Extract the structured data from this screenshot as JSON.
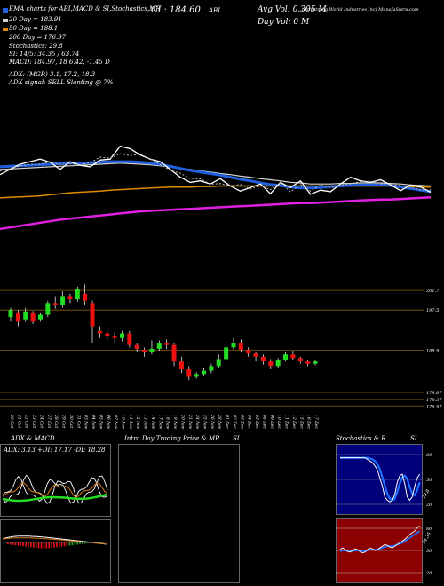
{
  "header": {
    "topline_left": "MunafaSutra.com",
    "symbol_title": "EMA charts for ABI,MACD & SI,Stochastics,MR",
    "cl_text": "CL: 184.60",
    "symbol_text": "ABI",
    "avg_vol": "Avg Vol: 0.305 M",
    "day_vol": "Day Vol: 0   M",
    "company": "(Armstrong World Industries Inc) MunafaSutra.com",
    "ma20": "20  Day  = 183.91",
    "ma50": "50  Day  = 188.1",
    "ma200": "200  Day  = 176.97",
    "stochastics": "Stochastics: 29.8",
    "si": "SI: 14/5: 34.35 / 63.74",
    "macd": "MACD: 184.97, 18          6.42, -1.45 D",
    "adx_line": "ADX:                              (MGR) 3.1,  17.2,  18.3",
    "adx_signal": "ADX  signal: SELL  Slanting @ 7%"
  },
  "colors": {
    "background": "#000000",
    "ema20": "#1f5fe0",
    "ema50": "#d4d4d4",
    "ema200_orange": "#e08a00",
    "ema_magenta": "#e020e0",
    "price": "#ffffff",
    "candle_up": "#22dd22",
    "candle_down": "#ee1111"
  },
  "chart_data": [
    {
      "type": "line",
      "title": "EMA lines",
      "note_series": [
        "price",
        "ema20",
        "ema50",
        "ema200",
        "long_ema"
      ],
      "x_count": 44,
      "series": [
        {
          "name": "",
          "values": [
            188,
            189,
            190,
            190.5,
            191,
            190.4,
            189,
            190.5,
            189.8,
            189.5,
            190.8,
            191,
            193.5,
            193,
            191.8,
            191,
            190.5,
            189,
            187.5,
            186.5,
            186.8,
            186.2,
            187.2,
            185.8,
            184.8,
            185.5,
            186.2,
            184.3,
            186.5,
            185.5,
            186.8,
            184.2,
            185,
            184.7,
            186.2,
            187.5,
            186.8,
            186.5,
            187,
            186,
            184.9,
            186,
            185.6,
            184.6
          ]
        },
        {
          "name": "",
          "values": [
            189.5,
            189.6,
            189.7,
            189.8,
            189.9,
            190,
            190.1,
            190.2,
            190.2,
            190.3,
            190.4,
            190.5,
            190.5,
            190.5,
            190.4,
            190.2,
            190,
            189.6,
            189.2,
            188.8,
            188.5,
            188.2,
            187.9,
            187.5,
            187.1,
            186.8,
            186.4,
            186.1,
            185.9,
            185.6,
            185.4,
            185.4,
            185.5,
            185.7,
            185.8,
            185.9,
            186,
            186,
            186,
            185.9,
            185.6,
            185.3,
            185,
            184.7
          ]
        },
        {
          "name": "",
          "values": [
            189,
            189.1,
            189.2,
            189.3,
            189.4,
            189.5,
            189.6,
            189.7,
            189.8,
            189.9,
            190,
            190.1,
            190.2,
            190.1,
            190,
            189.9,
            189.7,
            189.5,
            189.2,
            189,
            188.7,
            188.5,
            188.2,
            188,
            187.7,
            187.5,
            187.2,
            187,
            186.8,
            186.5,
            186.4,
            186.2,
            186.2,
            186.2,
            186.3,
            186.3,
            186.4,
            186.4,
            186.4,
            186.3,
            186.2,
            186,
            185.9,
            185.8
          ]
        },
        {
          "name": "",
          "values": [
            183.5,
            183.6,
            183.7,
            183.8,
            183.9,
            184.1,
            184.3,
            184.5,
            184.6,
            184.7,
            184.8,
            185,
            185.1,
            185.2,
            185.3,
            185.4,
            185.5,
            185.6,
            185.6,
            185.6,
            185.7,
            185.7,
            185.8,
            185.8,
            185.8,
            185.8,
            185.8,
            185.8,
            185.8,
            185.8,
            185.8,
            185.8,
            185.8,
            185.8,
            185.8,
            185.8,
            185.8,
            185.8,
            185.8,
            185.8,
            185.8,
            185.7,
            185.6,
            185.6
          ]
        },
        {
          "name": "",
          "values": [
            177.5,
            177.8,
            178.1,
            178.4,
            178.7,
            179,
            179.3,
            179.5,
            179.7,
            179.9,
            180.1,
            180.3,
            180.5,
            180.7,
            180.9,
            181,
            181.1,
            181.2,
            181.3,
            181.4,
            181.5,
            181.6,
            181.7,
            181.8,
            181.9,
            182,
            182.1,
            182.2,
            182.3,
            182.4,
            182.5,
            182.5,
            182.6,
            182.7,
            182.8,
            182.9,
            183,
            183.1,
            183.2,
            183.2,
            183.3,
            183.4,
            183.5,
            183.6
          ]
        }
      ]
    },
    {
      "type": "candlestick",
      "title": "",
      "y_tick_labels": [
        "201.7",
        "197.5",
        "188.9",
        "179.87",
        "178.37",
        "176.97"
      ],
      "x_labels": [
        "20 Oct",
        "21 Oct",
        "22 Oct",
        "23 Oct",
        "24 Oct",
        "27 Oct",
        "28 Oct",
        "29 Oct",
        "30 Oct",
        "31 Oct",
        "03 Nov",
        "04 Nov",
        "05 Nov",
        "06 Nov",
        "07 Nov",
        "10 Nov",
        "11 Nov",
        "12 Nov",
        "13 Nov",
        "14 Nov",
        "17 Nov",
        "18 Nov",
        "19 Nov",
        "20 Nov",
        "21 Nov",
        "24 Nov",
        "25 Nov",
        "26 Nov",
        "28 Nov",
        "01 Dec",
        "02 Dec",
        "03 Dec",
        "04 Dec",
        "05 Dec",
        "08 Dec",
        "09 Dec",
        "10 Dec",
        "11 Dec",
        "12 Dec",
        "15 Dec",
        "16 Dec",
        "17 Dec"
      ],
      "candles": [
        [
          196,
          197.5,
          195,
          198
        ],
        [
          197,
          195,
          194,
          197.5
        ],
        [
          195.5,
          197.2,
          195,
          198
        ],
        [
          197,
          195,
          194.5,
          197.3
        ],
        [
          195.5,
          196.5,
          195,
          197
        ],
        [
          196.5,
          199,
          196,
          199.5
        ],
        [
          199,
          198.5,
          197.8,
          200.5
        ],
        [
          198.5,
          200.5,
          198,
          201.5
        ],
        [
          200.5,
          199.8,
          199,
          201
        ],
        [
          199.8,
          202,
          199.3,
          202.5
        ],
        [
          201,
          199.5,
          198.5,
          203
        ],
        [
          199,
          194,
          190.5,
          199.5
        ],
        [
          193,
          192.5,
          191.5,
          194
        ],
        [
          192.5,
          192,
          191,
          193.5
        ],
        [
          192,
          191.5,
          190.5,
          192.8
        ],
        [
          191.5,
          192.5,
          190.8,
          193
        ],
        [
          192.5,
          190,
          189.5,
          193
        ],
        [
          190,
          189.2,
          188.5,
          190.5
        ],
        [
          189,
          188.5,
          187.5,
          189.5
        ],
        [
          188.5,
          189.2,
          188,
          191
        ],
        [
          189.2,
          190.5,
          188.8,
          191
        ],
        [
          190.5,
          190,
          189.2,
          191.2
        ],
        [
          190,
          186.5,
          185.5,
          190.5
        ],
        [
          186.5,
          184.8,
          184,
          187.5
        ],
        [
          184.8,
          183.2,
          182.5,
          185.5
        ],
        [
          183.2,
          183.8,
          182.8,
          184.2
        ],
        [
          183.8,
          184.5,
          183.5,
          185
        ],
        [
          184.5,
          185.5,
          184,
          186
        ],
        [
          185.5,
          187,
          185,
          188
        ],
        [
          187,
          189.5,
          186.5,
          190
        ],
        [
          189.5,
          190.5,
          189,
          191.5
        ],
        [
          190.5,
          189,
          188.5,
          191.2
        ],
        [
          189,
          188.2,
          187.5,
          189.5
        ],
        [
          188.2,
          187.5,
          186.5,
          188.5
        ],
        [
          187.5,
          186.5,
          185.8,
          188
        ],
        [
          186.5,
          185.5,
          184.8,
          187
        ],
        [
          185.5,
          186.8,
          185,
          187.2
        ],
        [
          186.8,
          188,
          186.5,
          188.5
        ],
        [
          188,
          187.2,
          186.8,
          188.8
        ],
        [
          187.2,
          186.5,
          186,
          187.5
        ],
        [
          186.5,
          186,
          185.5,
          186.8
        ],
        [
          186,
          186.5,
          185.7,
          186.8
        ]
      ]
    },
    {
      "type": "line",
      "title": "ADX  & MACD",
      "header_text": "ADX: 3.13  +DI: 17.17  -DI: 18.28"
    },
    {
      "type": "line",
      "title": "Intra  Day Trading Price  & MR",
      "title_right": "SI"
    },
    {
      "type": "line",
      "title": "Stochastics & R",
      "title_right": "SI",
      "y_tick_labels_top": [
        "80",
        "50",
        "20"
      ],
      "y_tick_labels_bottom": [
        "80",
        "50",
        "20"
      ],
      "side_labels": [
        "29.8",
        "34.35"
      ]
    }
  ]
}
